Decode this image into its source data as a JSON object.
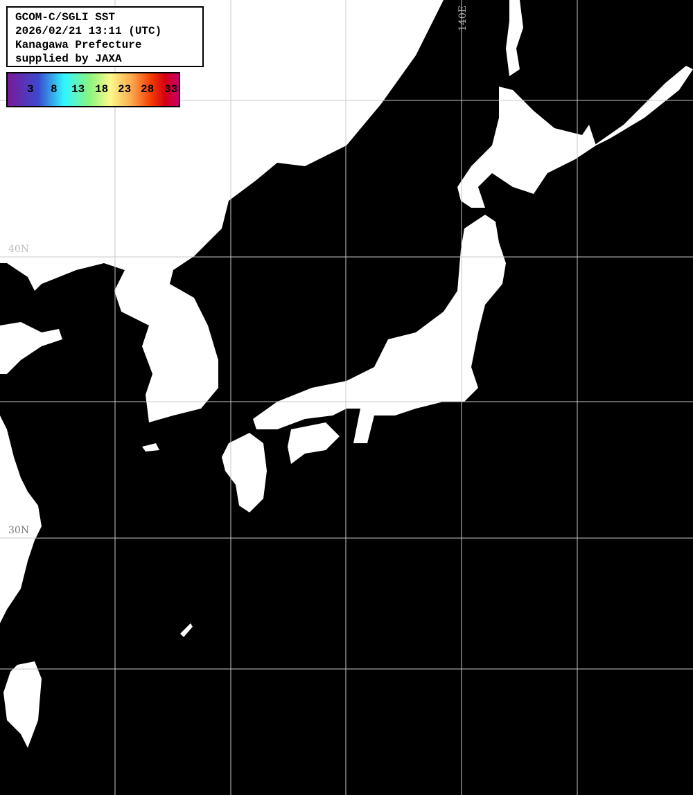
{
  "header": {
    "lines": [
      "GCOM-C/SGLI SST",
      "2026/02/21 13:11 (UTC)",
      "Kanagawa Prefecture",
      "supplied by JAXA"
    ]
  },
  "colorbar": {
    "ticks": [
      "3",
      "8",
      "13",
      "18",
      "23",
      "28",
      "33"
    ],
    "colors": [
      "#7a1a9a",
      "#3a4ad0",
      "#2ff6ff",
      "#8cf57d",
      "#fdf98a",
      "#fcac50",
      "#f53a00",
      "#d40015",
      "#c8006a"
    ]
  },
  "map": {
    "land_color": "#ffffff",
    "ocean_color": "#000000",
    "grid_color": "#c8c8c8",
    "labels": {
      "lat40": "40N",
      "lat30": "30N",
      "lon140": "140E"
    }
  }
}
